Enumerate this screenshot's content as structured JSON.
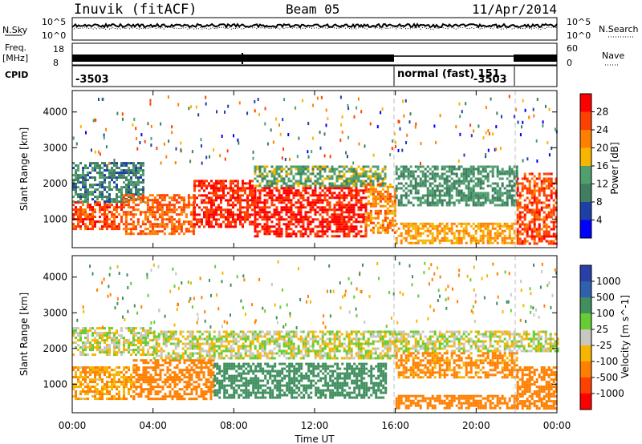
{
  "header": {
    "station": "Inuvik (fitACF)",
    "beam": "Beam 05",
    "date": "11/Apr/2014"
  },
  "strips": {
    "nsky_label": "N.Sky",
    "nsky_ticks": [
      "10^5",
      "10^0"
    ],
    "nsearch_label": "N.Search",
    "nsearch_ticks": [
      "10^5",
      "10^0"
    ],
    "freq_label": [
      "Freq.",
      "[MHz]"
    ],
    "freq_ticks": [
      "18",
      "8"
    ],
    "nave_label": "Nave",
    "nave_ticks": [
      "60",
      "0"
    ],
    "cpid_label": "CPID",
    "cpid_values": [
      "-3503",
      "normal (fast) 151",
      "-3503"
    ]
  },
  "colors": {
    "power_scale": [
      "#0000ff",
      "#1f3fa8",
      "#3f7f5f",
      "#4f9f6f",
      "#f7b500",
      "#ff7f00",
      "#ff4000",
      "#ff0000"
    ],
    "velocity_scale": [
      "#2a3fa8",
      "#2f5fae",
      "#3f8f5f",
      "#66cc33",
      "#c8c8c0",
      "#f7b500",
      "#ff7f00",
      "#ff4000",
      "#ff0000"
    ]
  },
  "chart_data": [
    {
      "type": "heatmap",
      "title": "",
      "quantity": "Power",
      "xlabel": "",
      "ylabel": "Slant Range [km]",
      "x_ticks": [
        "00:00",
        "04:00",
        "08:00",
        "12:00",
        "16:00",
        "20:00",
        "00:00"
      ],
      "x_range_hours": [
        0,
        24
      ],
      "y_ticks": [
        1000,
        2000,
        3000,
        4000
      ],
      "ylim": [
        200,
        4600
      ],
      "colorbar": {
        "label": "Power [dB]",
        "ticks": [
          4,
          8,
          12,
          16,
          20,
          24,
          28
        ],
        "range": [
          0,
          32
        ]
      },
      "mode_change_markers_hours": [
        16.0,
        22.0
      ],
      "echo_bands": [
        {
          "t_start": 0.0,
          "t_end": 2.5,
          "range_min": 700,
          "range_max": 1500,
          "power": 26
        },
        {
          "t_start": 0.0,
          "t_end": 3.5,
          "range_min": 1500,
          "range_max": 2600,
          "power": 10
        },
        {
          "t_start": 2.5,
          "t_end": 6.0,
          "range_min": 600,
          "range_max": 1700,
          "power": 24
        },
        {
          "t_start": 6.0,
          "t_end": 9.0,
          "range_min": 800,
          "range_max": 2100,
          "power": 28
        },
        {
          "t_start": 9.0,
          "t_end": 14.5,
          "range_min": 500,
          "range_max": 1900,
          "power": 29
        },
        {
          "t_start": 9.0,
          "t_end": 15.5,
          "range_min": 1900,
          "range_max": 2500,
          "power": 14
        },
        {
          "t_start": 14.5,
          "t_end": 16.0,
          "range_min": 600,
          "range_max": 2000,
          "power": 22
        },
        {
          "t_start": 16.0,
          "t_end": 22.0,
          "range_min": 300,
          "range_max": 900,
          "power": 20
        },
        {
          "t_start": 16.0,
          "t_end": 22.0,
          "range_min": 1400,
          "range_max": 2500,
          "power": 12
        },
        {
          "t_start": 22.0,
          "t_end": 24.0,
          "range_min": 300,
          "range_max": 2300,
          "power": 26
        }
      ]
    },
    {
      "type": "heatmap",
      "title": "",
      "quantity": "Velocity",
      "xlabel": "Time UT",
      "ylabel": "Slant Range [km]",
      "x_ticks": [
        "00:00",
        "04:00",
        "08:00",
        "12:00",
        "16:00",
        "20:00",
        "00:00"
      ],
      "x_range_hours": [
        0,
        24
      ],
      "y_ticks": [
        1000,
        2000,
        3000,
        4000
      ],
      "ylim": [
        200,
        4600
      ],
      "colorbar": {
        "label": "Velocity [m s^-1]",
        "ticks": [
          "1000",
          "500",
          "100",
          "25",
          "-25",
          "-100",
          "-500",
          "-1000"
        ]
      },
      "mode_change_markers_hours": [
        16.0,
        22.0
      ],
      "echo_bands": [
        {
          "t_start": 0.0,
          "t_end": 3.0,
          "range_min": 600,
          "range_max": 1500,
          "velocity": -100
        },
        {
          "t_start": 0.0,
          "t_end": 4.0,
          "range_min": 1800,
          "range_max": 2600,
          "velocity": 0
        },
        {
          "t_start": 3.0,
          "t_end": 7.0,
          "range_min": 600,
          "range_max": 1700,
          "velocity": -200
        },
        {
          "t_start": 7.0,
          "t_end": 15.5,
          "range_min": 600,
          "range_max": 1600,
          "velocity": 200
        },
        {
          "t_start": 4.0,
          "t_end": 16.0,
          "range_min": 1700,
          "range_max": 2500,
          "velocity": 0
        },
        {
          "t_start": 16.0,
          "t_end": 22.0,
          "range_min": 300,
          "range_max": 700,
          "velocity": -200
        },
        {
          "t_start": 16.0,
          "t_end": 22.0,
          "range_min": 1200,
          "range_max": 1900,
          "velocity": -150
        },
        {
          "t_start": 16.0,
          "t_end": 24.0,
          "range_min": 1900,
          "range_max": 2500,
          "velocity": 0
        },
        {
          "t_start": 22.0,
          "t_end": 24.0,
          "range_min": 300,
          "range_max": 1500,
          "velocity": -300
        }
      ]
    }
  ]
}
